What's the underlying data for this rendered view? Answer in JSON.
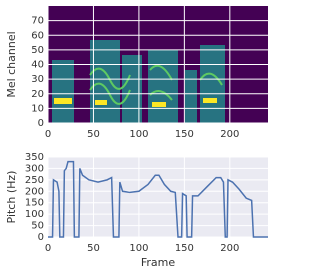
{
  "chart_data": [
    {
      "type": "heatmap",
      "ylabel": "Mel channel",
      "xlim": [
        0,
        242
      ],
      "xticks": [
        0,
        50,
        100,
        150,
        200
      ],
      "ylim": [
        0,
        80
      ],
      "yticks": [
        0,
        10,
        20,
        30,
        40,
        50,
        60,
        70
      ],
      "grid": true
    },
    {
      "type": "line",
      "xlabel": "Frame",
      "ylabel": "Pitch (Hz)",
      "xlim": [
        0,
        242
      ],
      "xticks": [
        0,
        50,
        100,
        150,
        200
      ],
      "ylim": [
        0,
        350
      ],
      "yticks": [
        0,
        50,
        100,
        150,
        200,
        250,
        300,
        350
      ],
      "grid": true,
      "series": [
        {
          "color": "#4c72b0",
          "x": [
            0,
            5,
            6,
            8,
            10,
            12,
            13,
            17,
            18,
            20,
            22,
            28,
            29,
            34,
            35,
            38,
            45,
            55,
            65,
            70,
            72,
            78,
            79,
            82,
            90,
            100,
            110,
            118,
            122,
            128,
            135,
            140,
            143,
            147,
            148,
            152,
            153,
            158,
            159,
            165,
            175,
            185,
            190,
            193,
            195,
            197,
            198,
            203,
            210,
            218,
            224,
            226,
            242
          ],
          "values": [
            0,
            0,
            250,
            245,
            240,
            200,
            0,
            0,
            290,
            300,
            330,
            330,
            0,
            0,
            300,
            270,
            250,
            240,
            250,
            260,
            0,
            0,
            240,
            200,
            195,
            200,
            230,
            270,
            270,
            230,
            200,
            195,
            0,
            0,
            190,
            180,
            0,
            0,
            180,
            180,
            220,
            260,
            260,
            240,
            0,
            0,
            250,
            240,
            210,
            170,
            160,
            0,
            0
          ]
        }
      ]
    }
  ]
}
